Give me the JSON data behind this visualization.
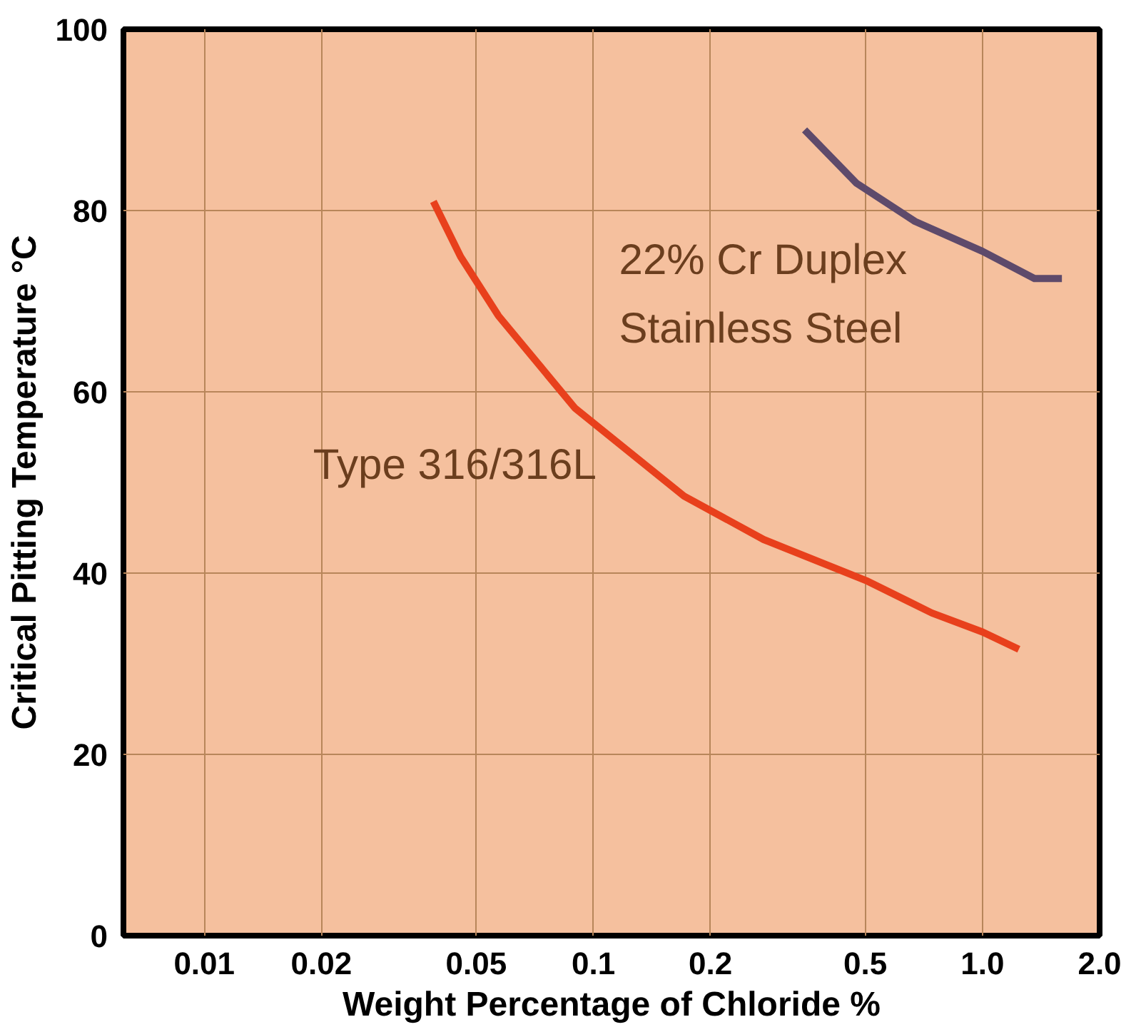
{
  "chart_data": {
    "type": "line",
    "xlabel": "Weight Percentage of Chloride %",
    "ylabel": "Critical Pitting Temperature °C",
    "log": "x",
    "xlim": [
      0.0062,
      2.0
    ],
    "xticks": [
      0.01,
      0.02,
      0.05,
      0.1,
      0.2,
      0.5,
      {
        "value": 1,
        "label": "1.0"
      },
      {
        "value": 2,
        "label": "2.0"
      }
    ],
    "ylim": [
      0,
      100
    ],
    "yticks": [
      0,
      20,
      40,
      60,
      80,
      100
    ],
    "grid": true,
    "legend": false,
    "marker": "none",
    "line_style": "solid",
    "series": [
      {
        "name": "Type 316/316L",
        "color": "#e8401c",
        "x": [
          0.0388,
          0.0456,
          0.057,
          0.0897,
          0.171,
          0.274,
          0.507,
          0.741,
          1.0,
          1.24
        ],
        "values": [
          81,
          74.9,
          68.4,
          58.2,
          48.5,
          43.7,
          39.1,
          35.6,
          33.5,
          31.6
        ]
      },
      {
        "name": "22% Cr Duplex\nStainless Steel",
        "color": "#5e4a6b",
        "x": [
          0.349,
          0.475,
          0.671,
          1.0,
          1.36,
          1.6
        ],
        "values": [
          88.9,
          83.0,
          78.8,
          75.5,
          72.5,
          72.5
        ]
      }
    ]
  }
}
